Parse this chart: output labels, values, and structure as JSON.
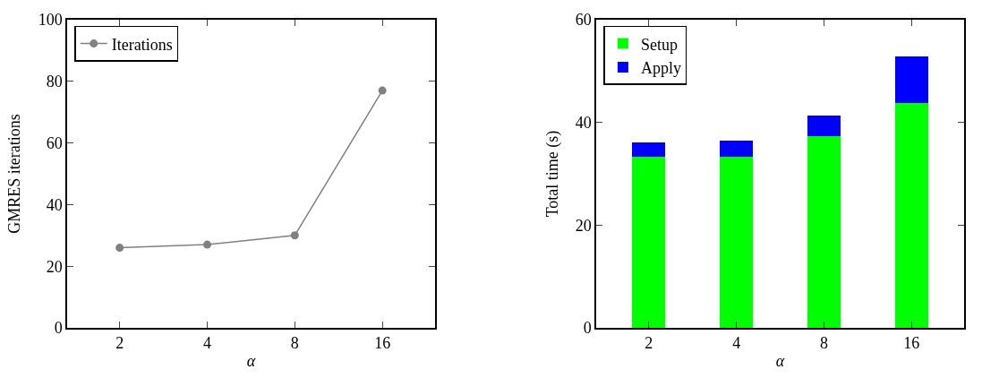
{
  "chart_data": [
    {
      "type": "line",
      "xlabel": "α",
      "ylabel": "GMRES iterations",
      "categories": [
        "2",
        "4",
        "8",
        "16"
      ],
      "series": [
        {
          "name": "Iterations",
          "color": "#808080",
          "values": [
            26,
            27,
            30,
            77
          ]
        }
      ],
      "ylim": [
        0,
        100
      ],
      "yticks": [
        0,
        20,
        40,
        60,
        80,
        100
      ],
      "legend": "top left",
      "marker": "circle",
      "line_style": "solid"
    },
    {
      "type": "bar",
      "stacked": true,
      "xlabel": "α",
      "ylabel": "Total time (s)",
      "categories": [
        "2",
        "4",
        "8",
        "16"
      ],
      "series": [
        {
          "name": "Setup",
          "color": "#00ff00",
          "values": [
            33.3,
            33.4,
            37.3,
            43.8
          ]
        },
        {
          "name": "Apply",
          "color": "#0000ff",
          "values": [
            2.8,
            3.1,
            4.0,
            9.0
          ]
        }
      ],
      "ylim": [
        0,
        60
      ],
      "yticks": [
        0,
        20,
        40,
        60
      ],
      "legend": "top left"
    }
  ]
}
